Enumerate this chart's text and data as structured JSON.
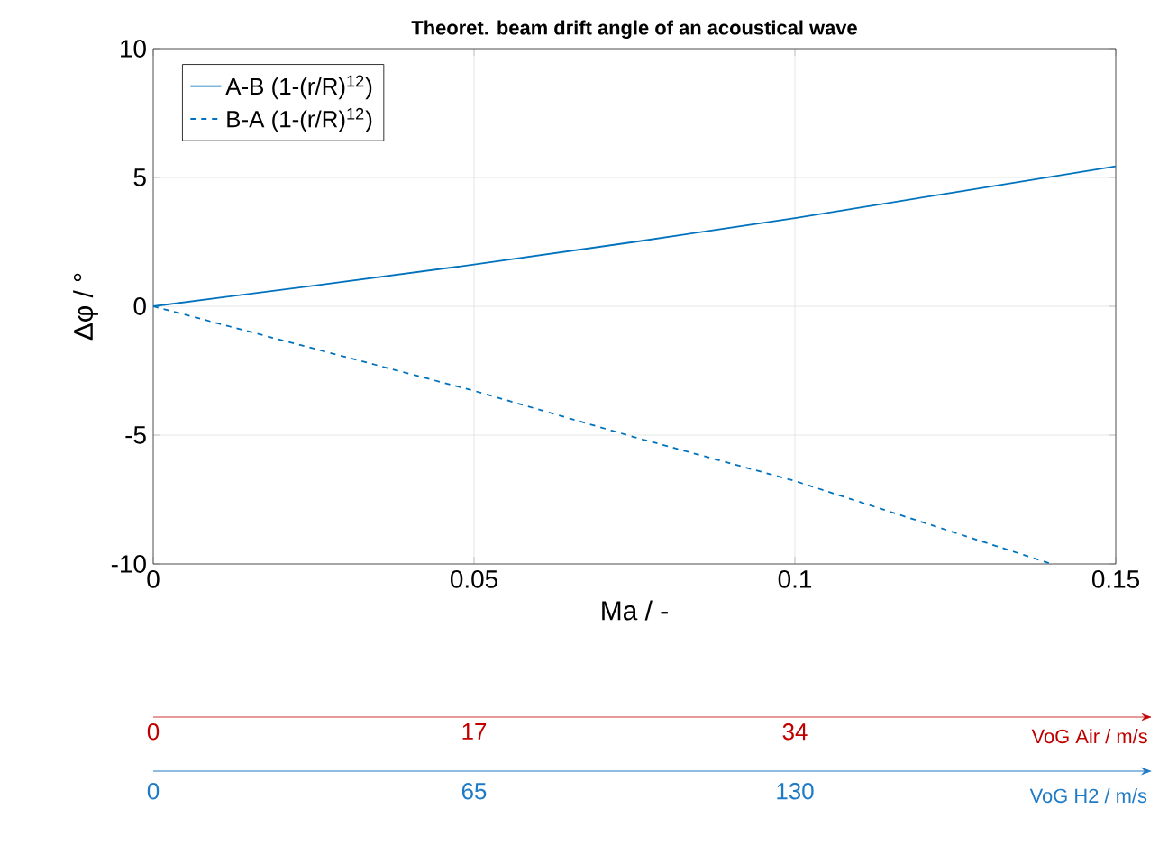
{
  "chart_data": [
    {
      "type": "line",
      "title": "Theoret. beam drift angle of an acoustical wave",
      "xlabel": "Ma / -",
      "ylabel": "Δφ / °",
      "xlim": [
        0,
        0.15
      ],
      "xticks": [
        0,
        0.05,
        0.1,
        0.15
      ],
      "ylim": [
        -10,
        10
      ],
      "yticks": [
        -10,
        -5,
        0,
        5,
        10
      ],
      "x2lim": [
        0,
        51
      ],
      "x2ticks": [
        0,
        17,
        34
      ],
      "x2label": "VoG Air / m/s",
      "grid": true,
      "legend": "top left",
      "marker": "none",
      "series": [
        {
          "name": "A-B (1-(r/R)$^{12}$)",
          "color": "#0072bd",
          "line_style": "solid",
          "x": [
            0,
            0.025,
            0.05,
            0.075,
            0.1,
            0.125,
            0.15
          ],
          "values": [
            0,
            0.8,
            1.62,
            2.5,
            3.42,
            4.43,
            5.43
          ]
        },
        {
          "name": "B-A (1-(r/R)$^{12}$)",
          "color": "#0072bd",
          "line_style": "dashed",
          "x": [
            0,
            0.05,
            0.075,
            0.1,
            0.14
          ],
          "values": [
            0,
            -3.28,
            -5.08,
            -6.78,
            -10
          ]
        }
      ]
    },
    {
      "type": "other",
      "annotations": [
        "0",
        "65",
        "130",
        "VoG H2 / m/s"
      ]
    }
  ]
}
